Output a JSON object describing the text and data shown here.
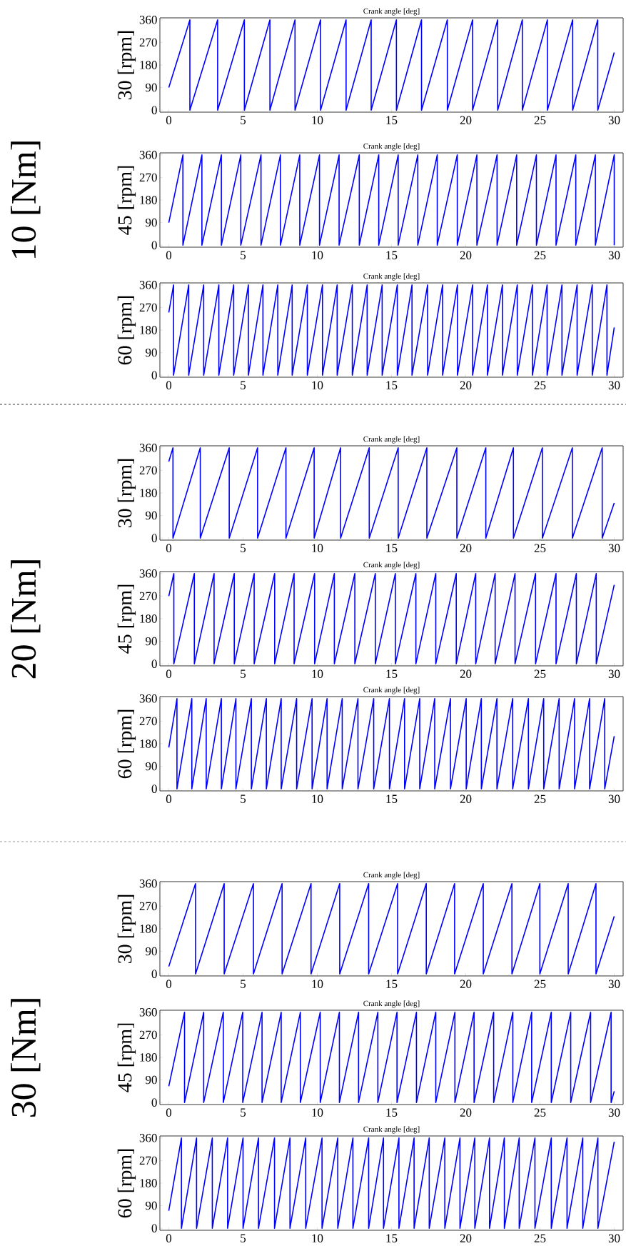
{
  "chart_data": [
    {
      "type": "line",
      "title": "Crank angle [deg]",
      "ylabel": "30 [rpm]",
      "color": "#0000ff",
      "xlim": [
        -0.6,
        30.6
      ],
      "ylim": [
        -8,
        368
      ],
      "xticks": [
        0,
        5,
        10,
        15,
        20,
        25,
        30
      ],
      "yticks": [
        0,
        90,
        180,
        270,
        360
      ],
      "x": [
        0,
        1.42,
        1.42,
        3.29,
        3.29,
        5.09,
        5.09,
        6.81,
        6.81,
        8.5,
        8.5,
        10.22,
        10.22,
        11.94,
        11.94,
        13.63,
        13.63,
        15.33,
        15.33,
        17.02,
        17.02,
        18.76,
        18.76,
        20.46,
        20.46,
        22.15,
        22.15,
        23.81,
        23.81,
        25.5,
        25.5,
        27.2,
        27.2,
        28.89,
        28.89,
        30
      ],
      "values": [
        90,
        360,
        0,
        360,
        0,
        360,
        0,
        360,
        0,
        360,
        0,
        360,
        0,
        360,
        0,
        360,
        0,
        360,
        0,
        360,
        0,
        360,
        0,
        360,
        0,
        360,
        0,
        360,
        0,
        360,
        0,
        360,
        0,
        360,
        0,
        230
      ]
    },
    {
      "type": "line",
      "title": "Crank angle [deg]",
      "ylabel": "45 [rpm]",
      "annotations": [
        "10 [Nm]"
      ],
      "color": "#0000ff",
      "xlim": [
        -0.6,
        30.6
      ],
      "ylim": [
        -8,
        368
      ],
      "xticks": [
        0,
        5,
        10,
        15,
        20,
        25,
        30
      ],
      "yticks": [
        0,
        90,
        180,
        270,
        360
      ],
      "x": [
        0,
        0.95,
        0.95,
        2.23,
        2.23,
        3.54,
        3.54,
        4.85,
        4.85,
        6.21,
        6.21,
        7.52,
        7.52,
        8.82,
        8.82,
        10.15,
        10.15,
        11.47,
        11.47,
        12.83,
        12.83,
        14.14,
        14.14,
        15.45,
        15.45,
        16.77,
        16.77,
        18.08,
        18.08,
        19.43,
        19.43,
        20.75,
        20.75,
        22.11,
        22.11,
        23.43,
        23.43,
        24.76,
        24.76,
        26.08,
        26.08,
        27.41,
        27.41,
        28.73,
        28.73,
        30,
        30
      ],
      "values": [
        90,
        360,
        0,
        360,
        0,
        360,
        0,
        360,
        0,
        360,
        0,
        360,
        0,
        360,
        0,
        360,
        0,
        360,
        0,
        360,
        0,
        360,
        0,
        360,
        0,
        360,
        0,
        360,
        0,
        360,
        0,
        360,
        0,
        360,
        0,
        360,
        0,
        360,
        0,
        360,
        0,
        360,
        0,
        360,
        0,
        360,
        0
      ]
    },
    {
      "type": "line",
      "title": "Crank angle [deg]",
      "ylabel": "60 [rpm]",
      "color": "#0000ff",
      "xlim": [
        -0.6,
        30.6
      ],
      "ylim": [
        -8,
        368
      ],
      "xticks": [
        0,
        5,
        10,
        15,
        20,
        25,
        30
      ],
      "yticks": [
        0,
        90,
        180,
        270,
        360
      ],
      "x": [
        0,
        0.32,
        0.32,
        1.34,
        1.34,
        2.35,
        2.35,
        3.37,
        3.37,
        4.37,
        4.37,
        5.36,
        5.36,
        6.34,
        6.34,
        7.34,
        7.34,
        8.31,
        8.31,
        9.33,
        9.33,
        10.35,
        10.35,
        11.34,
        11.34,
        12.36,
        12.36,
        13.36,
        13.36,
        14.37,
        14.37,
        15.39,
        15.39,
        16.38,
        16.38,
        17.43,
        17.43,
        18.44,
        18.44,
        19.44,
        19.44,
        20.46,
        20.46,
        21.46,
        21.46,
        22.47,
        22.47,
        23.47,
        23.47,
        24.49,
        24.49,
        25.48,
        25.48,
        26.48,
        26.48,
        27.5,
        27.5,
        28.52,
        28.52,
        29.51,
        29.51,
        30
      ],
      "values": [
        250,
        360,
        0,
        360,
        0,
        360,
        0,
        360,
        0,
        360,
        0,
        360,
        0,
        360,
        0,
        360,
        0,
        360,
        0,
        360,
        0,
        360,
        0,
        360,
        0,
        360,
        0,
        360,
        0,
        360,
        0,
        360,
        0,
        360,
        0,
        360,
        0,
        360,
        0,
        360,
        0,
        360,
        0,
        360,
        0,
        360,
        0,
        360,
        0,
        360,
        0,
        360,
        0,
        360,
        0,
        360,
        0,
        360,
        0,
        360,
        0,
        190
      ]
    },
    {
      "type": "line",
      "title": "Crank angle [deg]",
      "ylabel": "30 [rpm]",
      "color": "#0000ff",
      "xlim": [
        -0.6,
        30.6
      ],
      "ylim": [
        -8,
        368
      ],
      "xticks": [
        0,
        5,
        10,
        15,
        20,
        25,
        30
      ],
      "yticks": [
        0,
        90,
        180,
        270,
        360
      ],
      "x": [
        0,
        0.28,
        0.28,
        2.12,
        2.12,
        4.07,
        4.07,
        5.98,
        5.98,
        7.89,
        7.89,
        9.79,
        9.79,
        11.57,
        11.57,
        13.5,
        13.5,
        15.45,
        15.45,
        17.38,
        17.38,
        19.4,
        19.4,
        21.35,
        21.35,
        23.21,
        23.21,
        25.16,
        25.16,
        27.18,
        27.18,
        29.19,
        29.19,
        30
      ],
      "values": [
        305,
        360,
        0,
        360,
        0,
        360,
        0,
        360,
        0,
        360,
        0,
        360,
        0,
        360,
        0,
        360,
        0,
        360,
        0,
        360,
        0,
        360,
        0,
        360,
        0,
        360,
        0,
        360,
        0,
        360,
        0,
        360,
        0,
        140
      ]
    },
    {
      "type": "line",
      "title": "Crank angle [deg]",
      "ylabel": "45 [rpm]",
      "annotations": [
        "20 [Nm]"
      ],
      "color": "#0000ff",
      "xlim": [
        -0.6,
        30.6
      ],
      "ylim": [
        -8,
        368
      ],
      "xticks": [
        0,
        5,
        10,
        15,
        20,
        25,
        30
      ],
      "yticks": [
        0,
        90,
        180,
        270,
        360
      ],
      "x": [
        0,
        0.34,
        0.34,
        1.72,
        1.72,
        3.05,
        3.05,
        4.41,
        4.41,
        5.75,
        5.75,
        7.13,
        7.13,
        8.44,
        8.44,
        9.82,
        9.82,
        11.15,
        11.15,
        12.53,
        12.53,
        13.91,
        13.91,
        15.26,
        15.26,
        16.64,
        16.64,
        17.98,
        17.98,
        19.36,
        19.36,
        20.67,
        20.67,
        21.98,
        21.98,
        23.32,
        23.32,
        24.7,
        24.7,
        26.08,
        26.08,
        27.45,
        27.45,
        28.79,
        28.79,
        30
      ],
      "values": [
        270,
        360,
        0,
        360,
        0,
        360,
        0,
        360,
        0,
        360,
        0,
        360,
        0,
        360,
        0,
        360,
        0,
        360,
        0,
        360,
        0,
        360,
        0,
        360,
        0,
        360,
        0,
        360,
        0,
        360,
        0,
        360,
        0,
        360,
        0,
        360,
        0,
        360,
        0,
        360,
        0,
        360,
        0,
        360,
        0,
        315
      ]
    },
    {
      "type": "line",
      "title": "Crank angle [deg]",
      "ylabel": "60 [rpm]",
      "color": "#0000ff",
      "xlim": [
        -0.6,
        30.6
      ],
      "ylim": [
        -8,
        368
      ],
      "xticks": [
        0,
        5,
        10,
        15,
        20,
        25,
        30
      ],
      "yticks": [
        0,
        90,
        180,
        270,
        360
      ],
      "x": [
        0,
        0.55,
        0.55,
        1.55,
        1.55,
        2.52,
        2.52,
        3.54,
        3.54,
        4.52,
        4.52,
        5.56,
        5.56,
        6.57,
        6.57,
        7.57,
        7.57,
        8.61,
        8.61,
        9.65,
        9.65,
        10.66,
        10.66,
        11.68,
        11.68,
        12.74,
        12.74,
        13.8,
        13.8,
        14.86,
        14.86,
        15.88,
        15.88,
        16.9,
        16.9,
        17.91,
        17.91,
        18.97,
        18.97,
        20.03,
        20.03,
        21.05,
        21.05,
        22.1,
        22.1,
        23.16,
        23.16,
        24.22,
        24.22,
        25.25,
        25.25,
        26.29,
        26.29,
        27.33,
        27.33,
        28.34,
        28.34,
        29.36,
        29.36,
        30
      ],
      "values": [
        165,
        360,
        0,
        360,
        0,
        360,
        0,
        360,
        0,
        360,
        0,
        360,
        0,
        360,
        0,
        360,
        0,
        360,
        0,
        360,
        0,
        360,
        0,
        360,
        0,
        360,
        0,
        360,
        0,
        360,
        0,
        360,
        0,
        360,
        0,
        360,
        0,
        360,
        0,
        360,
        0,
        360,
        0,
        360,
        0,
        360,
        0,
        360,
        0,
        360,
        0,
        360,
        0,
        360,
        0,
        360,
        0,
        360,
        0,
        210
      ]
    },
    {
      "type": "line",
      "title": "Crank angle [deg]",
      "ylabel": "30 [rpm]",
      "color": "#0000ff",
      "xlim": [
        -0.6,
        30.6
      ],
      "ylim": [
        -8,
        368
      ],
      "xticks": [
        0,
        5,
        10,
        15,
        20,
        25,
        30
      ],
      "yticks": [
        0,
        90,
        180,
        270,
        360
      ],
      "x": [
        0,
        1.8,
        1.8,
        3.73,
        3.73,
        5.7,
        5.7,
        7.63,
        7.63,
        9.58,
        9.58,
        11.51,
        11.51,
        13.46,
        13.46,
        15.41,
        15.41,
        17.34,
        17.34,
        19.25,
        19.25,
        21.18,
        21.18,
        23.11,
        23.11,
        24.99,
        24.99,
        26.9,
        26.9,
        28.77,
        28.77,
        30
      ],
      "values": [
        30,
        360,
        0,
        360,
        0,
        360,
        0,
        360,
        0,
        360,
        0,
        360,
        0,
        360,
        0,
        360,
        0,
        360,
        0,
        360,
        0,
        360,
        0,
        360,
        0,
        360,
        0,
        360,
        0,
        360,
        0,
        230
      ]
    },
    {
      "type": "line",
      "title": "Crank angle [deg]",
      "ylabel": "45 [rpm]",
      "annotations": [
        "30 [Nm]"
      ],
      "color": "#0000ff",
      "xlim": [
        -0.6,
        30.6
      ],
      "ylim": [
        -8,
        368
      ],
      "xticks": [
        0,
        5,
        10,
        15,
        20,
        25,
        30
      ],
      "yticks": [
        0,
        90,
        180,
        270,
        360
      ],
      "x": [
        0,
        1.06,
        1.06,
        2.35,
        2.35,
        3.67,
        3.67,
        4.98,
        4.98,
        6.28,
        6.28,
        7.57,
        7.57,
        8.86,
        8.86,
        10.2,
        10.2,
        11.49,
        11.49,
        12.78,
        12.78,
        14.08,
        14.08,
        15.37,
        15.37,
        16.68,
        16.68,
        17.98,
        17.98,
        19.27,
        19.27,
        20.56,
        20.56,
        21.88,
        21.88,
        23.17,
        23.17,
        24.44,
        24.44,
        25.76,
        25.76,
        27.07,
        27.07,
        28.41,
        28.41,
        29.79,
        29.79,
        30
      ],
      "values": [
        65,
        360,
        0,
        360,
        0,
        360,
        0,
        360,
        0,
        360,
        0,
        360,
        0,
        360,
        0,
        360,
        0,
        360,
        0,
        360,
        0,
        360,
        0,
        360,
        0,
        360,
        0,
        360,
        0,
        360,
        0,
        360,
        0,
        360,
        0,
        360,
        0,
        360,
        0,
        360,
        0,
        360,
        0,
        360,
        0,
        360,
        0,
        45
      ]
    },
    {
      "type": "line",
      "title": "Crank angle [deg]",
      "ylabel": "60 [rpm]",
      "color": "#0000ff",
      "xlim": [
        -0.6,
        30.6
      ],
      "ylim": [
        -8,
        368
      ],
      "xticks": [
        0,
        5,
        10,
        15,
        20,
        25,
        30
      ],
      "yticks": [
        0,
        90,
        180,
        270,
        360
      ],
      "x": [
        0,
        0.85,
        0.85,
        1.87,
        1.87,
        2.93,
        2.93,
        3.96,
        3.96,
        5.0,
        5.0,
        6.04,
        6.04,
        7.12,
        7.12,
        8.16,
        8.16,
        9.22,
        9.22,
        10.32,
        10.32,
        11.38,
        11.38,
        12.4,
        12.4,
        13.46,
        13.46,
        14.46,
        14.46,
        15.5,
        15.5,
        16.52,
        16.52,
        17.54,
        17.54,
        18.59,
        18.59,
        19.61,
        19.61,
        20.61,
        20.61,
        21.6,
        21.6,
        22.6,
        22.6,
        23.6,
        23.6,
        24.66,
        24.66,
        25.76,
        25.76,
        26.82,
        26.82,
        27.88,
        27.88,
        28.9,
        28.9,
        30
      ],
      "values": [
        70,
        360,
        0,
        360,
        0,
        360,
        0,
        360,
        0,
        360,
        0,
        360,
        0,
        360,
        0,
        360,
        0,
        360,
        0,
        360,
        0,
        360,
        0,
        360,
        0,
        360,
        0,
        360,
        0,
        360,
        0,
        360,
        0,
        360,
        0,
        360,
        0,
        360,
        0,
        360,
        0,
        360,
        0,
        360,
        0,
        360,
        0,
        360,
        0,
        360,
        0,
        360,
        0,
        360,
        0,
        360,
        0,
        345
      ]
    }
  ]
}
